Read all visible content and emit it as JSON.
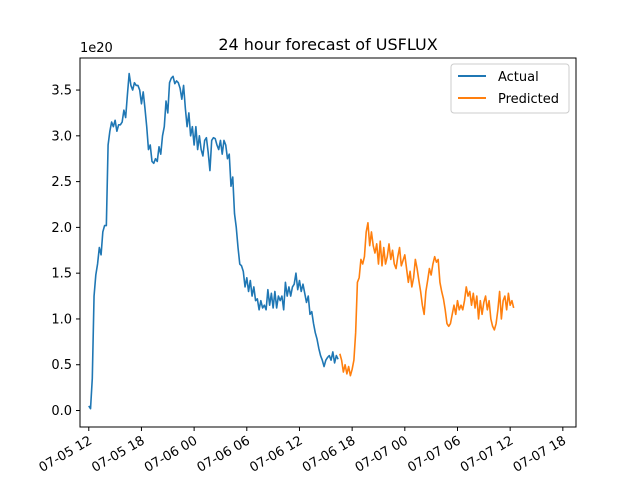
{
  "chart_data": {
    "type": "line",
    "title": "24 hour forecast of USFLUX",
    "offset_text": "1e20",
    "xlabel": "",
    "ylabel": "",
    "xlim": [
      "2023-07-05 11:00",
      "2023-07-07 19:30"
    ],
    "ylim": [
      -0.18,
      3.85
    ],
    "x_ticks": [
      "07-05 12",
      "07-05 18",
      "07-06 00",
      "07-06 06",
      "07-06 12",
      "07-06 18",
      "07-07 00",
      "07-07 06",
      "07-07 12",
      "07-07 18"
    ],
    "y_ticks": [
      "0.0",
      "0.5",
      "1.0",
      "1.5",
      "2.0",
      "2.5",
      "3.0",
      "3.5"
    ],
    "grid": false,
    "legend_position": "top-right",
    "series": [
      {
        "name": "Actual",
        "color": "#1f77b4",
        "points": [
          [
            "2023-07-05 12:00",
            0.05
          ],
          [
            "2023-07-05 12:12",
            0.02
          ],
          [
            "2023-07-05 12:24",
            0.35
          ],
          [
            "2023-07-05 12:36",
            1.25
          ],
          [
            "2023-07-05 12:48",
            1.48
          ],
          [
            "2023-07-05 13:00",
            1.6
          ],
          [
            "2023-07-05 13:12",
            1.78
          ],
          [
            "2023-07-05 13:24",
            1.7
          ],
          [
            "2023-07-05 13:36",
            1.95
          ],
          [
            "2023-07-05 13:48",
            2.02
          ],
          [
            "2023-07-05 14:00",
            2.02
          ],
          [
            "2023-07-05 14:12",
            2.9
          ],
          [
            "2023-07-05 14:24",
            3.05
          ],
          [
            "2023-07-05 14:36",
            3.15
          ],
          [
            "2023-07-05 14:48",
            3.1
          ],
          [
            "2023-07-05 15:00",
            3.17
          ],
          [
            "2023-07-05 15:12",
            3.05
          ],
          [
            "2023-07-05 15:24",
            3.12
          ],
          [
            "2023-07-05 15:36",
            3.12
          ],
          [
            "2023-07-05 15:48",
            3.15
          ],
          [
            "2023-07-05 16:00",
            3.28
          ],
          [
            "2023-07-05 16:12",
            3.2
          ],
          [
            "2023-07-05 16:24",
            3.45
          ],
          [
            "2023-07-05 16:36",
            3.68
          ],
          [
            "2023-07-05 16:48",
            3.55
          ],
          [
            "2023-07-05 17:00",
            3.5
          ],
          [
            "2023-07-05 17:12",
            3.58
          ],
          [
            "2023-07-05 17:24",
            3.55
          ],
          [
            "2023-07-05 17:36",
            3.55
          ],
          [
            "2023-07-05 17:48",
            3.5
          ],
          [
            "2023-07-05 18:00",
            3.35
          ],
          [
            "2023-07-05 18:12",
            3.48
          ],
          [
            "2023-07-05 18:24",
            3.3
          ],
          [
            "2023-07-05 18:36",
            3.1
          ],
          [
            "2023-07-05 18:48",
            2.85
          ],
          [
            "2023-07-05 19:00",
            2.9
          ],
          [
            "2023-07-05 19:12",
            2.72
          ],
          [
            "2023-07-05 19:24",
            2.7
          ],
          [
            "2023-07-05 19:36",
            2.75
          ],
          [
            "2023-07-05 19:48",
            2.72
          ],
          [
            "2023-07-05 20:00",
            2.88
          ],
          [
            "2023-07-05 20:12",
            2.8
          ],
          [
            "2023-07-05 20:24",
            3.0
          ],
          [
            "2023-07-05 20:36",
            3.1
          ],
          [
            "2023-07-05 20:48",
            3.38
          ],
          [
            "2023-07-05 21:00",
            3.25
          ],
          [
            "2023-07-05 21:12",
            3.58
          ],
          [
            "2023-07-05 21:24",
            3.63
          ],
          [
            "2023-07-05 21:36",
            3.65
          ],
          [
            "2023-07-05 21:48",
            3.57
          ],
          [
            "2023-07-05 22:00",
            3.6
          ],
          [
            "2023-07-05 22:12",
            3.58
          ],
          [
            "2023-07-05 22:24",
            3.52
          ],
          [
            "2023-07-05 22:36",
            3.4
          ],
          [
            "2023-07-05 22:48",
            3.55
          ],
          [
            "2023-07-05 23:00",
            3.3
          ],
          [
            "2023-07-05 23:12",
            3.1
          ],
          [
            "2023-07-05 23:24",
            3.25
          ],
          [
            "2023-07-05 23:36",
            3.0
          ],
          [
            "2023-07-05 23:48",
            3.1
          ],
          [
            "2023-07-06 00:00",
            2.9
          ],
          [
            "2023-07-06 00:12",
            3.1
          ],
          [
            "2023-07-06 00:24",
            2.85
          ],
          [
            "2023-07-06 00:36",
            3.0
          ],
          [
            "2023-07-06 00:48",
            2.85
          ],
          [
            "2023-07-06 01:00",
            2.78
          ],
          [
            "2023-07-06 01:12",
            2.95
          ],
          [
            "2023-07-06 01:24",
            2.98
          ],
          [
            "2023-07-06 01:36",
            2.82
          ],
          [
            "2023-07-06 01:48",
            2.62
          ],
          [
            "2023-07-06 02:00",
            2.95
          ],
          [
            "2023-07-06 02:12",
            2.98
          ],
          [
            "2023-07-06 02:24",
            2.97
          ],
          [
            "2023-07-06 02:36",
            2.9
          ],
          [
            "2023-07-06 02:48",
            2.85
          ],
          [
            "2023-07-06 03:00",
            2.95
          ],
          [
            "2023-07-06 03:12",
            2.8
          ],
          [
            "2023-07-06 03:24",
            2.95
          ],
          [
            "2023-07-06 03:36",
            2.9
          ],
          [
            "2023-07-06 03:48",
            2.75
          ],
          [
            "2023-07-06 04:00",
            2.8
          ],
          [
            "2023-07-06 04:12",
            2.45
          ],
          [
            "2023-07-06 04:24",
            2.55
          ],
          [
            "2023-07-06 04:36",
            2.15
          ],
          [
            "2023-07-06 04:48",
            2.0
          ],
          [
            "2023-07-06 05:00",
            1.78
          ],
          [
            "2023-07-06 05:12",
            1.6
          ],
          [
            "2023-07-06 05:24",
            1.58
          ],
          [
            "2023-07-06 05:36",
            1.52
          ],
          [
            "2023-07-06 05:48",
            1.35
          ],
          [
            "2023-07-06 06:00",
            1.45
          ],
          [
            "2023-07-06 06:12",
            1.3
          ],
          [
            "2023-07-06 06:24",
            1.42
          ],
          [
            "2023-07-06 06:36",
            1.25
          ],
          [
            "2023-07-06 06:48",
            1.35
          ],
          [
            "2023-07-06 07:00",
            1.2
          ],
          [
            "2023-07-06 07:12",
            1.22
          ],
          [
            "2023-07-06 07:24",
            1.1
          ],
          [
            "2023-07-06 07:36",
            1.2
          ],
          [
            "2023-07-06 07:48",
            1.12
          ],
          [
            "2023-07-06 08:00",
            1.15
          ],
          [
            "2023-07-06 08:12",
            1.1
          ],
          [
            "2023-07-06 08:24",
            1.32
          ],
          [
            "2023-07-06 08:36",
            1.15
          ],
          [
            "2023-07-06 08:48",
            1.28
          ],
          [
            "2023-07-06 09:00",
            1.12
          ],
          [
            "2023-07-06 09:12",
            1.3
          ],
          [
            "2023-07-06 09:24",
            1.12
          ],
          [
            "2023-07-06 09:36",
            1.25
          ],
          [
            "2023-07-06 09:48",
            1.2
          ],
          [
            "2023-07-06 10:00",
            1.25
          ],
          [
            "2023-07-06 10:12",
            1.1
          ],
          [
            "2023-07-06 10:24",
            1.4
          ],
          [
            "2023-07-06 10:36",
            1.25
          ],
          [
            "2023-07-06 10:48",
            1.35
          ],
          [
            "2023-07-06 11:00",
            1.25
          ],
          [
            "2023-07-06 11:12",
            1.35
          ],
          [
            "2023-07-06 11:24",
            1.38
          ],
          [
            "2023-07-06 11:36",
            1.5
          ],
          [
            "2023-07-06 11:48",
            1.32
          ],
          [
            "2023-07-06 12:00",
            1.42
          ],
          [
            "2023-07-06 12:12",
            1.3
          ],
          [
            "2023-07-06 12:24",
            1.38
          ],
          [
            "2023-07-06 12:36",
            1.28
          ],
          [
            "2023-07-06 12:48",
            1.18
          ],
          [
            "2023-07-06 13:00",
            1.25
          ],
          [
            "2023-07-06 13:12",
            1.05
          ],
          [
            "2023-07-06 13:24",
            1.08
          ],
          [
            "2023-07-06 13:36",
            0.95
          ],
          [
            "2023-07-06 13:48",
            0.85
          ],
          [
            "2023-07-06 14:00",
            0.78
          ],
          [
            "2023-07-06 14:12",
            0.68
          ],
          [
            "2023-07-06 14:24",
            0.6
          ],
          [
            "2023-07-06 14:36",
            0.55
          ],
          [
            "2023-07-06 14:48",
            0.48
          ],
          [
            "2023-07-06 15:00",
            0.55
          ],
          [
            "2023-07-06 15:12",
            0.58
          ],
          [
            "2023-07-06 15:24",
            0.6
          ],
          [
            "2023-07-06 15:36",
            0.55
          ],
          [
            "2023-07-06 15:48",
            0.64
          ],
          [
            "2023-07-06 16:00",
            0.52
          ],
          [
            "2023-07-06 16:12",
            0.6
          ],
          [
            "2023-07-06 16:24",
            0.56
          ]
        ]
      },
      {
        "name": "Predicted",
        "color": "#ff7f0e",
        "points": [
          [
            "2023-07-06 16:36",
            0.62
          ],
          [
            "2023-07-06 16:48",
            0.55
          ],
          [
            "2023-07-06 17:00",
            0.42
          ],
          [
            "2023-07-06 17:12",
            0.5
          ],
          [
            "2023-07-06 17:24",
            0.4
          ],
          [
            "2023-07-06 17:36",
            0.48
          ],
          [
            "2023-07-06 17:48",
            0.38
          ],
          [
            "2023-07-06 18:00",
            0.45
          ],
          [
            "2023-07-06 18:12",
            0.55
          ],
          [
            "2023-07-06 18:24",
            0.85
          ],
          [
            "2023-07-06 18:36",
            1.4
          ],
          [
            "2023-07-06 18:48",
            1.45
          ],
          [
            "2023-07-06 19:00",
            1.65
          ],
          [
            "2023-07-06 19:12",
            1.6
          ],
          [
            "2023-07-06 19:24",
            1.68
          ],
          [
            "2023-07-06 19:36",
            1.95
          ],
          [
            "2023-07-06 19:48",
            2.05
          ],
          [
            "2023-07-06 20:00",
            1.8
          ],
          [
            "2023-07-06 20:12",
            1.95
          ],
          [
            "2023-07-06 20:24",
            1.8
          ],
          [
            "2023-07-06 20:36",
            1.72
          ],
          [
            "2023-07-06 20:48",
            1.82
          ],
          [
            "2023-07-06 21:00",
            1.6
          ],
          [
            "2023-07-06 21:12",
            1.85
          ],
          [
            "2023-07-06 21:24",
            1.58
          ],
          [
            "2023-07-06 21:36",
            1.78
          ],
          [
            "2023-07-06 21:48",
            1.6
          ],
          [
            "2023-07-06 22:00",
            1.68
          ],
          [
            "2023-07-06 22:12",
            1.82
          ],
          [
            "2023-07-06 22:24",
            1.65
          ],
          [
            "2023-07-06 22:36",
            1.75
          ],
          [
            "2023-07-06 22:48",
            1.6
          ],
          [
            "2023-07-06 23:00",
            1.55
          ],
          [
            "2023-07-06 23:12",
            1.68
          ],
          [
            "2023-07-06 23:24",
            1.78
          ],
          [
            "2023-07-06 23:36",
            1.58
          ],
          [
            "2023-07-07 00:00",
            1.7
          ],
          [
            "2023-07-07 00:12",
            1.55
          ],
          [
            "2023-07-07 00:24",
            1.4
          ],
          [
            "2023-07-07 00:36",
            1.52
          ],
          [
            "2023-07-07 00:48",
            1.35
          ],
          [
            "2023-07-07 01:00",
            1.45
          ],
          [
            "2023-07-07 01:12",
            1.65
          ],
          [
            "2023-07-07 01:24",
            1.55
          ],
          [
            "2023-07-07 01:36",
            1.42
          ],
          [
            "2023-07-07 01:48",
            1.3
          ],
          [
            "2023-07-07 02:00",
            1.15
          ],
          [
            "2023-07-07 02:12",
            1.05
          ],
          [
            "2023-07-07 02:24",
            1.3
          ],
          [
            "2023-07-07 02:36",
            1.42
          ],
          [
            "2023-07-07 02:48",
            1.55
          ],
          [
            "2023-07-07 03:00",
            1.48
          ],
          [
            "2023-07-07 03:12",
            1.6
          ],
          [
            "2023-07-07 03:24",
            1.68
          ],
          [
            "2023-07-07 03:36",
            1.62
          ],
          [
            "2023-07-07 03:48",
            1.65
          ],
          [
            "2023-07-07 04:00",
            1.4
          ],
          [
            "2023-07-07 04:12",
            1.3
          ],
          [
            "2023-07-07 04:24",
            1.22
          ],
          [
            "2023-07-07 04:36",
            1.1
          ],
          [
            "2023-07-07 04:48",
            0.95
          ],
          [
            "2023-07-07 05:00",
            0.92
          ],
          [
            "2023-07-07 05:12",
            0.95
          ],
          [
            "2023-07-07 05:24",
            1.05
          ],
          [
            "2023-07-07 05:36",
            1.15
          ],
          [
            "2023-07-07 05:48",
            1.05
          ],
          [
            "2023-07-07 06:00",
            1.2
          ],
          [
            "2023-07-07 06:12",
            1.1
          ],
          [
            "2023-07-07 06:24",
            1.15
          ],
          [
            "2023-07-07 06:36",
            1.1
          ],
          [
            "2023-07-07 06:48",
            1.2
          ],
          [
            "2023-07-07 07:00",
            1.35
          ],
          [
            "2023-07-07 07:12",
            1.25
          ],
          [
            "2023-07-07 07:24",
            1.3
          ],
          [
            "2023-07-07 07:36",
            1.15
          ],
          [
            "2023-07-07 07:48",
            1.28
          ],
          [
            "2023-07-07 08:00",
            1.12
          ],
          [
            "2023-07-07 08:12",
            1.25
          ],
          [
            "2023-07-07 08:24",
            1.0
          ],
          [
            "2023-07-07 08:36",
            1.2
          ],
          [
            "2023-07-07 08:48",
            1.05
          ],
          [
            "2023-07-07 09:00",
            1.18
          ],
          [
            "2023-07-07 09:12",
            1.25
          ],
          [
            "2023-07-07 09:24",
            1.1
          ],
          [
            "2023-07-07 09:36",
            1.2
          ],
          [
            "2023-07-07 09:48",
            1.0
          ],
          [
            "2023-07-07 10:00",
            0.92
          ],
          [
            "2023-07-07 10:12",
            0.88
          ],
          [
            "2023-07-07 10:24",
            0.95
          ],
          [
            "2023-07-07 10:36",
            1.1
          ],
          [
            "2023-07-07 10:48",
            1.3
          ],
          [
            "2023-07-07 11:00",
            1.0
          ],
          [
            "2023-07-07 11:12",
            1.2
          ],
          [
            "2023-07-07 11:24",
            1.25
          ],
          [
            "2023-07-07 11:36",
            1.1
          ],
          [
            "2023-07-07 11:48",
            1.28
          ],
          [
            "2023-07-07 12:00",
            1.15
          ],
          [
            "2023-07-07 12:12",
            1.2
          ],
          [
            "2023-07-07 12:24",
            1.12
          ]
        ]
      }
    ]
  }
}
